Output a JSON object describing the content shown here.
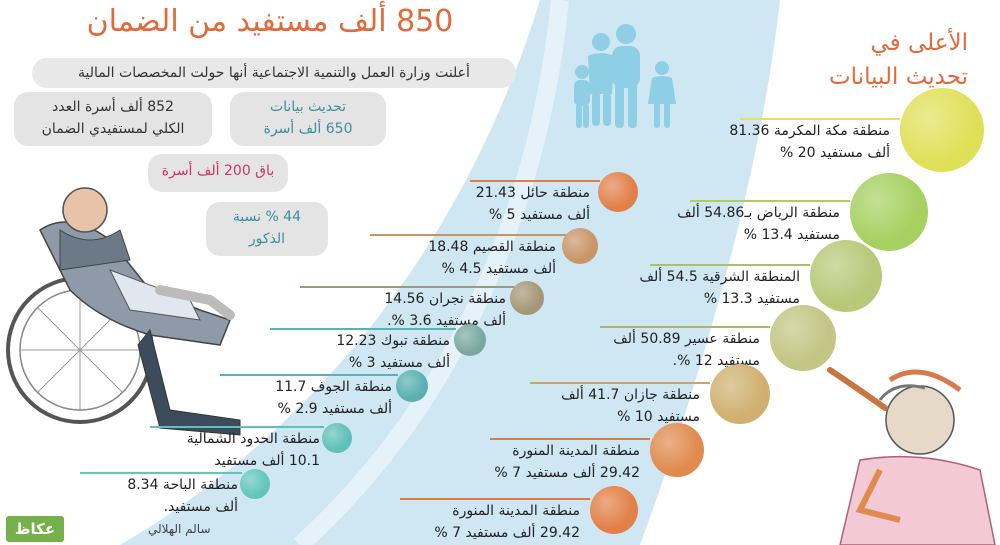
{
  "title": "850 ألف مستفيد من الضمان",
  "subtitle": "أعلنت وزارة العمل والتنمية الاجتماعية أنها حولت المخصصات المالية",
  "stats": {
    "total_line1": "852 ألف أسرة العدد",
    "total_line2": "الكلي لمستفيدي الضمان",
    "update_line1": "تحديث بيانات",
    "update_line2": "650 ألف أسرة",
    "remaining": "باق 200 ألف أسرة",
    "male_line1": "44 % نسبة",
    "male_line2": "الذكور"
  },
  "side_title": {
    "line1": "الأعلى في",
    "line2": "تحديث البيانات"
  },
  "right_regions": [
    {
      "line1": "منطقة مكة المكرمة 81.36",
      "line2": "ألف مستفيد 20 %"
    },
    {
      "line1": "منطقة الرياض بـ54.86 ألف",
      "line2": "مستفيد 13.4 %"
    },
    {
      "line1": "المنطقة الشرقية 54.5 ألف",
      "line2": "مستفيد 13.3 %"
    },
    {
      "line1": "منطقة عسير 50.89 ألف",
      "line2": "مستفيد 12 %."
    },
    {
      "line1": "منطقة جازان 41.7 ألف",
      "line2": "مستفيد 10 %"
    },
    {
      "line1": "منطقة المدينة المنورة",
      "line2": "29.42 ألف مستفيد 7 %"
    },
    {
      "line1": "منطقة المدينة المنورة",
      "line2": "29.42 ألف مستفيد 7 %"
    }
  ],
  "left_regions": [
    {
      "line1": "منطقة حائل 21.43",
      "line2": "ألف مستفيد 5 %"
    },
    {
      "line1": "منطقة القصيم 18.48",
      "line2": "ألف مستفيد 4.5 %"
    },
    {
      "line1": "منطقة نجران 14.56",
      "line2": "ألف مستفيد 3.6 %."
    },
    {
      "line1": "منطقة تبوك 12.23",
      "line2": "ألف مستفيد 3 %"
    },
    {
      "line1": "منطقة الجوف 11.7",
      "line2": "ألف مستفيد 2.9 %"
    },
    {
      "line1": "منطقة الحدود الشمالية",
      "line2": "10.1 ألف مستفيد"
    },
    {
      "line1": "منطقة الباحة 8.34",
      "line2": "ألف مستفيد."
    }
  ],
  "footer": {
    "author": "سالم الهلالي",
    "logo": "عكاظ"
  },
  "colors": {
    "title_orange": "#e06a3b",
    "band_blue": "#cfe6f3",
    "stat_teal": "#3c8e9d",
    "remaining_pink": "#d03560",
    "right_circles": [
      "#dfe058",
      "#a6d05f",
      "#b7c878",
      "#c2c583",
      "#cfb070",
      "#e08a4e",
      "#e28047"
    ],
    "left_circles": [
      "#e2804b",
      "#c8956a",
      "#a59776",
      "#7aa8a0",
      "#58b0b0",
      "#5ec0b8",
      "#62c5bc"
    ],
    "line_right": [
      "#e6e05a",
      "#a8d065",
      "#a8c070",
      "#b8b268",
      "#d0a35e",
      "#d27f48",
      "#db7a44"
    ],
    "line_left": [
      "#e08048",
      "#c8955e",
      "#9a9a80",
      "#58b4b4",
      "#58b4b4",
      "#5ec0b8",
      "#62c5bc"
    ]
  }
}
